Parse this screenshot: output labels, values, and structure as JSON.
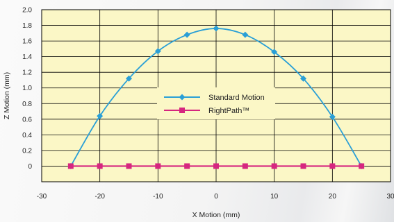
{
  "chart_data": {
    "type": "line",
    "title": "",
    "xlabel": "X Motion (mm)",
    "ylabel": "Z Motion (mm)",
    "xlim": [
      -30,
      30
    ],
    "ylim": [
      -0.2,
      2.0
    ],
    "xticks": [
      -30,
      -20,
      -10,
      0,
      10,
      20,
      30
    ],
    "yticks": [
      0,
      0.2,
      0.4,
      0.6,
      0.8,
      1.0,
      1.2,
      1.4,
      1.6,
      1.8,
      2.0
    ],
    "ytick_labels": [
      "0",
      "0.2",
      "0.4",
      "0.6",
      "0.8",
      "1.0",
      "1.2",
      "1.4",
      "1.6",
      "1.8",
      "2.0"
    ],
    "grid": true,
    "plot_background": "#fbf7c6",
    "legend_position": "center",
    "series": [
      {
        "name": "Standard Motion",
        "color": "#2a9fd6",
        "marker": "diamond",
        "smooth": true,
        "x": [
          -25,
          -20,
          -15,
          -10,
          -5,
          0,
          5,
          10,
          15,
          20,
          25
        ],
        "y": [
          0,
          0.64,
          1.12,
          1.47,
          1.68,
          1.76,
          1.68,
          1.46,
          1.12,
          0.63,
          0
        ]
      },
      {
        "name": "RightPath™",
        "color": "#d6267f",
        "marker": "square",
        "smooth": false,
        "x": [
          -25,
          -20,
          -15,
          -10,
          -5,
          0,
          5,
          10,
          15,
          20,
          25
        ],
        "y": [
          0,
          0,
          0,
          0,
          0,
          0,
          0,
          0,
          0,
          0,
          0
        ]
      }
    ]
  }
}
